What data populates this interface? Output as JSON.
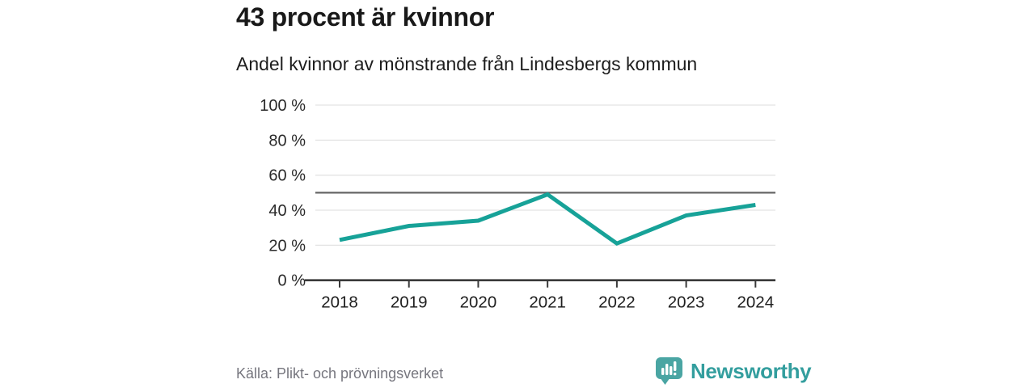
{
  "header": {
    "title": "43 procent är kvinnor",
    "subtitle": "Andel kvinnor av mönstrande från Lindesbergs kommun"
  },
  "chart_data": {
    "type": "line",
    "title": "43 procent är kvinnor",
    "subtitle": "Andel kvinnor av mönstrande från Lindesbergs kommun",
    "categories": [
      "2018",
      "2019",
      "2020",
      "2021",
      "2022",
      "2023",
      "2024"
    ],
    "series": [
      {
        "name": "Andel kvinnor av mönstrande",
        "values": [
          23,
          31,
          34,
          49,
          21,
          37,
          43
        ]
      }
    ],
    "xlabel": "",
    "ylabel": "",
    "ylim": [
      0,
      100
    ],
    "y_ticks": [
      0,
      20,
      40,
      60,
      80,
      100
    ],
    "y_tick_suffix": " %",
    "reference_line": 50,
    "grid": true,
    "legend": false,
    "line_color": "#17a298",
    "reference_line_color": "#666666",
    "gridline_color": "#e3e3e3",
    "axis_color": "#3a3a3a",
    "axis_label_color": "#2a2a2a"
  },
  "footer": {
    "source": "Källa: Plikt- och prövningsverket",
    "logo_text": "Newsworthy",
    "logo_icon": "bar-chart-pin-icon",
    "logo_color": "#339e9e",
    "logo_icon_color": "#4aa5a3"
  }
}
